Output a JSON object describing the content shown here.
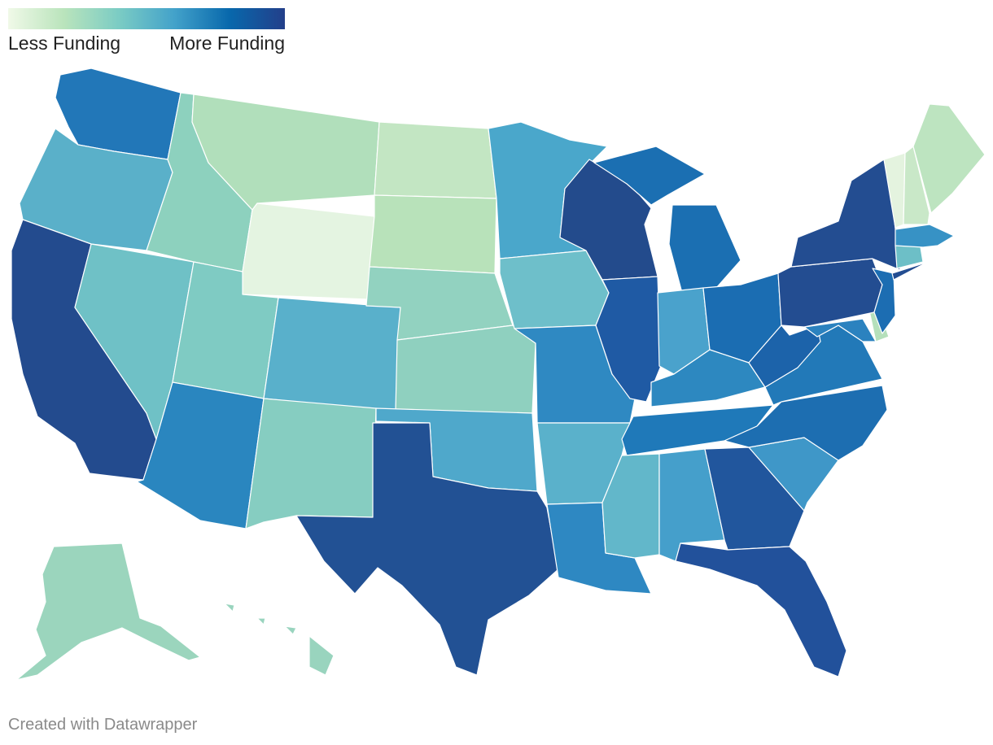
{
  "legend": {
    "low_label": "Less Funding",
    "high_label": "More Funding",
    "colors": [
      "#f0f9e8",
      "#bae4bc",
      "#7bccc4",
      "#43a2ca",
      "#0868ac",
      "#233f8a"
    ]
  },
  "credit": "Created with Datawrapper",
  "map_data": {
    "type": "choropleth",
    "region": "United States",
    "scale": "Less Funding to More Funding",
    "state_colors": {
      "WA": "#2277b8",
      "OR": "#5ab0c9",
      "CA": "#234b8e",
      "NV": "#6fc1c6",
      "ID": "#8dd1be",
      "MT": "#b1dfbb",
      "WY": "#e4f4e1",
      "UT": "#7fcbc3",
      "AZ": "#2a86bf",
      "NM": "#86cdc1",
      "CO": "#59b0cb",
      "ND": "#c3e6c3",
      "SD": "#b8e2ba",
      "NE": "#92d2c0",
      "KS": "#8fd0bf",
      "OK": "#4fa8cb",
      "TX": "#225194",
      "MN": "#4aa7cb",
      "IA": "#6ebfca",
      "MO": "#2f89c2",
      "AR": "#5ab1cb",
      "LA": "#2e88c2",
      "WI": "#234b8c",
      "IL": "#1f5aa4",
      "MI": "#1b6fb2",
      "IN": "#4aa2cc",
      "OH": "#1b6db2",
      "KY": "#2d88c0",
      "TN": "#1f79b9",
      "MS": "#62b7ca",
      "AL": "#459fcb",
      "GA": "#21569d",
      "FL": "#22519b",
      "SC": "#3f97c8",
      "NC": "#1d6eb1",
      "VA": "#2279b8",
      "WV": "#1c63aa",
      "PA": "#234d91",
      "NY": "#234d91",
      "NJ": "#1c6db2",
      "DE": "#b5e0bb",
      "MD": "#2b82bf",
      "CT": "#6dbfc7",
      "MA": "#3792c5",
      "VT": "#e4f3df",
      "NH": "#c9e8c8",
      "ME": "#bde4c0",
      "AK": "#9bd5bd",
      "HI": "#99d4be"
    }
  }
}
